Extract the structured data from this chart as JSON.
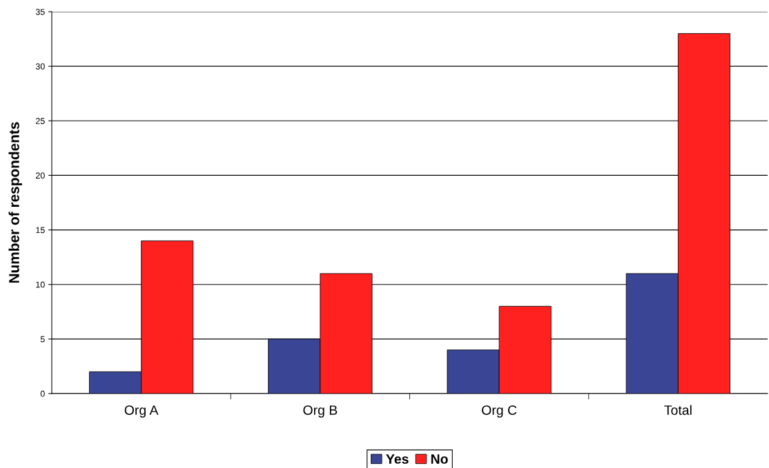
{
  "chart_data": {
    "type": "bar",
    "ylabel": "Number of respondents",
    "categories": [
      "Org A",
      "Org B",
      "Org C",
      "Total"
    ],
    "series": [
      {
        "name": "Yes",
        "color": "#3a4596",
        "values": [
          2,
          5,
          4,
          11
        ]
      },
      {
        "name": "No",
        "color": "#ff2020",
        "values": [
          14,
          11,
          8,
          33
        ]
      }
    ],
    "ylim": [
      0,
      35
    ],
    "yticks": [
      0,
      5,
      10,
      15,
      20,
      25,
      30,
      35
    ],
    "grid": "y",
    "legend": "bottom"
  }
}
